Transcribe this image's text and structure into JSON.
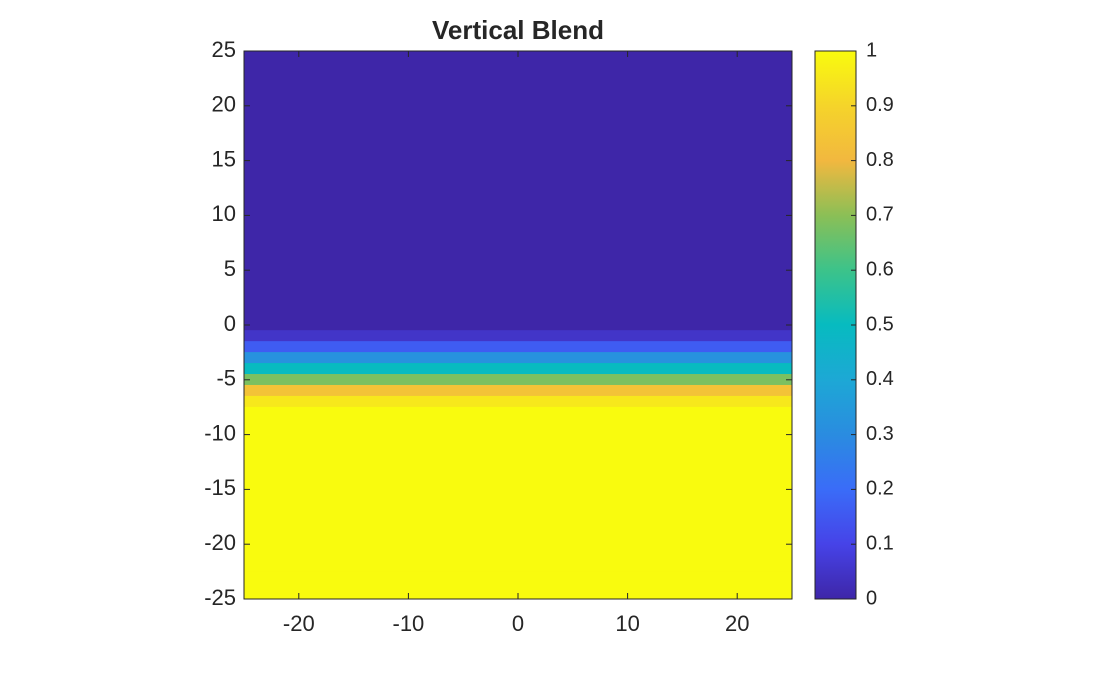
{
  "chart_data": {
    "type": "heatmap",
    "title": "Vertical Blend",
    "y": [
      25,
      24,
      23,
      22,
      21,
      20,
      19,
      18,
      17,
      16,
      15,
      14,
      13,
      12,
      11,
      10,
      9,
      8,
      7,
      6,
      5,
      4,
      3,
      2,
      1,
      0,
      -1,
      -2,
      -3,
      -4,
      -5,
      -6,
      -7,
      -8,
      -9,
      -10,
      -11,
      -12,
      -13,
      -14,
      -15,
      -16,
      -17,
      -18,
      -19,
      -20,
      -21,
      -22,
      -23,
      -24,
      -25
    ],
    "values": [
      0,
      0,
      0,
      0,
      0,
      0,
      0,
      0,
      0,
      0,
      0,
      0,
      0,
      0,
      0,
      0,
      0,
      0,
      0,
      0,
      0,
      0,
      0,
      0,
      0,
      0,
      0.05,
      0.16,
      0.32,
      0.5,
      0.68,
      0.84,
      0.95,
      1,
      1,
      1,
      1,
      1,
      1,
      1,
      1,
      1,
      1,
      1,
      1,
      1,
      1,
      1,
      1,
      1,
      1
    ],
    "xlim": [
      -25,
      25
    ],
    "ylim": [
      -25,
      25
    ],
    "xticks": [
      -20,
      -10,
      0,
      10,
      20
    ],
    "yticks": [
      -25,
      -20,
      -15,
      -10,
      -5,
      0,
      5,
      10,
      15,
      20,
      25
    ],
    "clim": [
      0,
      1
    ],
    "cticks": [
      0,
      0.1,
      0.2,
      0.3,
      0.4,
      0.5,
      0.6,
      0.7,
      0.8,
      0.9,
      1
    ],
    "colormap": [
      "#3e26a8",
      "#4643e8",
      "#3a6cf8",
      "#2a8ce0",
      "#1da8d5",
      "#07bbc0",
      "#3cc38a",
      "#8bbf56",
      "#f2b83f",
      "#f5d42a",
      "#f9fb0e"
    ]
  }
}
